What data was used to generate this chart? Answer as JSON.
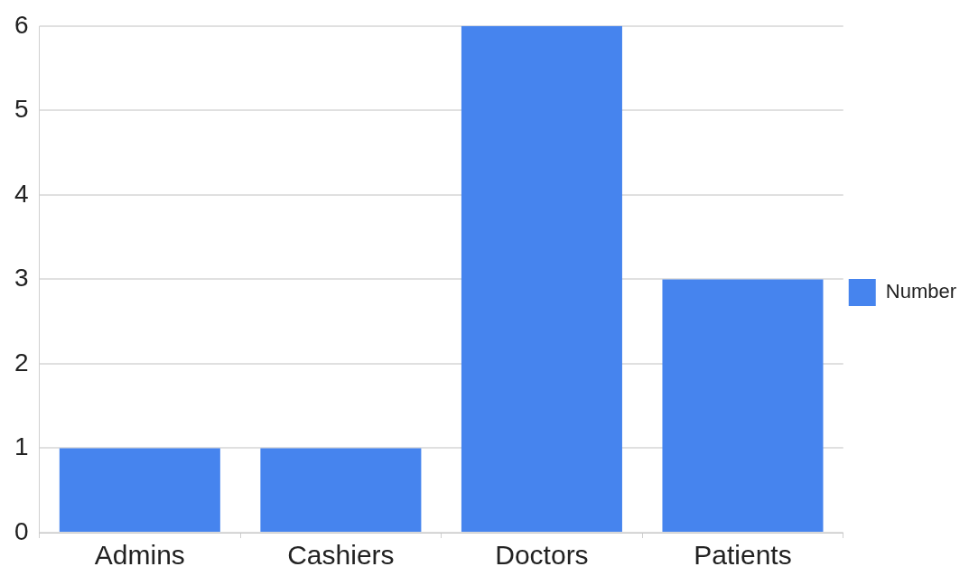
{
  "chart_data": {
    "type": "bar",
    "categories": [
      "Admins",
      "Cashiers",
      "Doctors",
      "Patients"
    ],
    "series": [
      {
        "name": "Number",
        "color": "#4684ee",
        "values": [
          1,
          1,
          6,
          3
        ]
      }
    ],
    "ylim": [
      0,
      6
    ],
    "yticks": [
      0,
      1,
      2,
      3,
      4,
      5,
      6
    ],
    "grid": "y",
    "legend": "right"
  }
}
